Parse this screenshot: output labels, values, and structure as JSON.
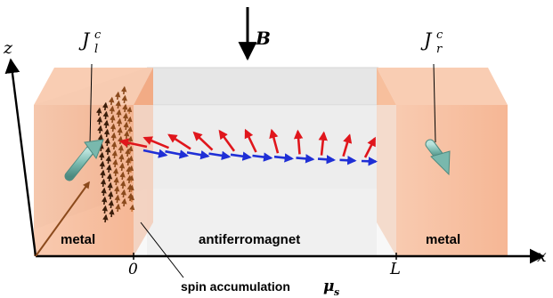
{
  "labels": {
    "z_axis": "z",
    "x_axis": "x",
    "field": "B",
    "current_left_base": "J",
    "current_left_sub": "l",
    "current_left_sup": "c",
    "current_right_base": "J",
    "current_right_sub": "r",
    "current_right_sup": "c",
    "origin_tick": "0",
    "length_tick": "L",
    "left_region": "metal",
    "middle_region": "antiferromagnet",
    "right_region": "metal",
    "spin_accumulation_text": "spin accumulation",
    "spin_accumulation_symbol": "μ",
    "spin_accumulation_sub": "s"
  },
  "colors": {
    "metal": "#f6b48f",
    "antiferromagnet": "#e6e6e6",
    "spin_accumulation": "#8b4a1c",
    "sublattice_a": "#e0161c",
    "sublattice_b": "#1f2fd6",
    "current_arrow": "#79b8ad"
  }
}
